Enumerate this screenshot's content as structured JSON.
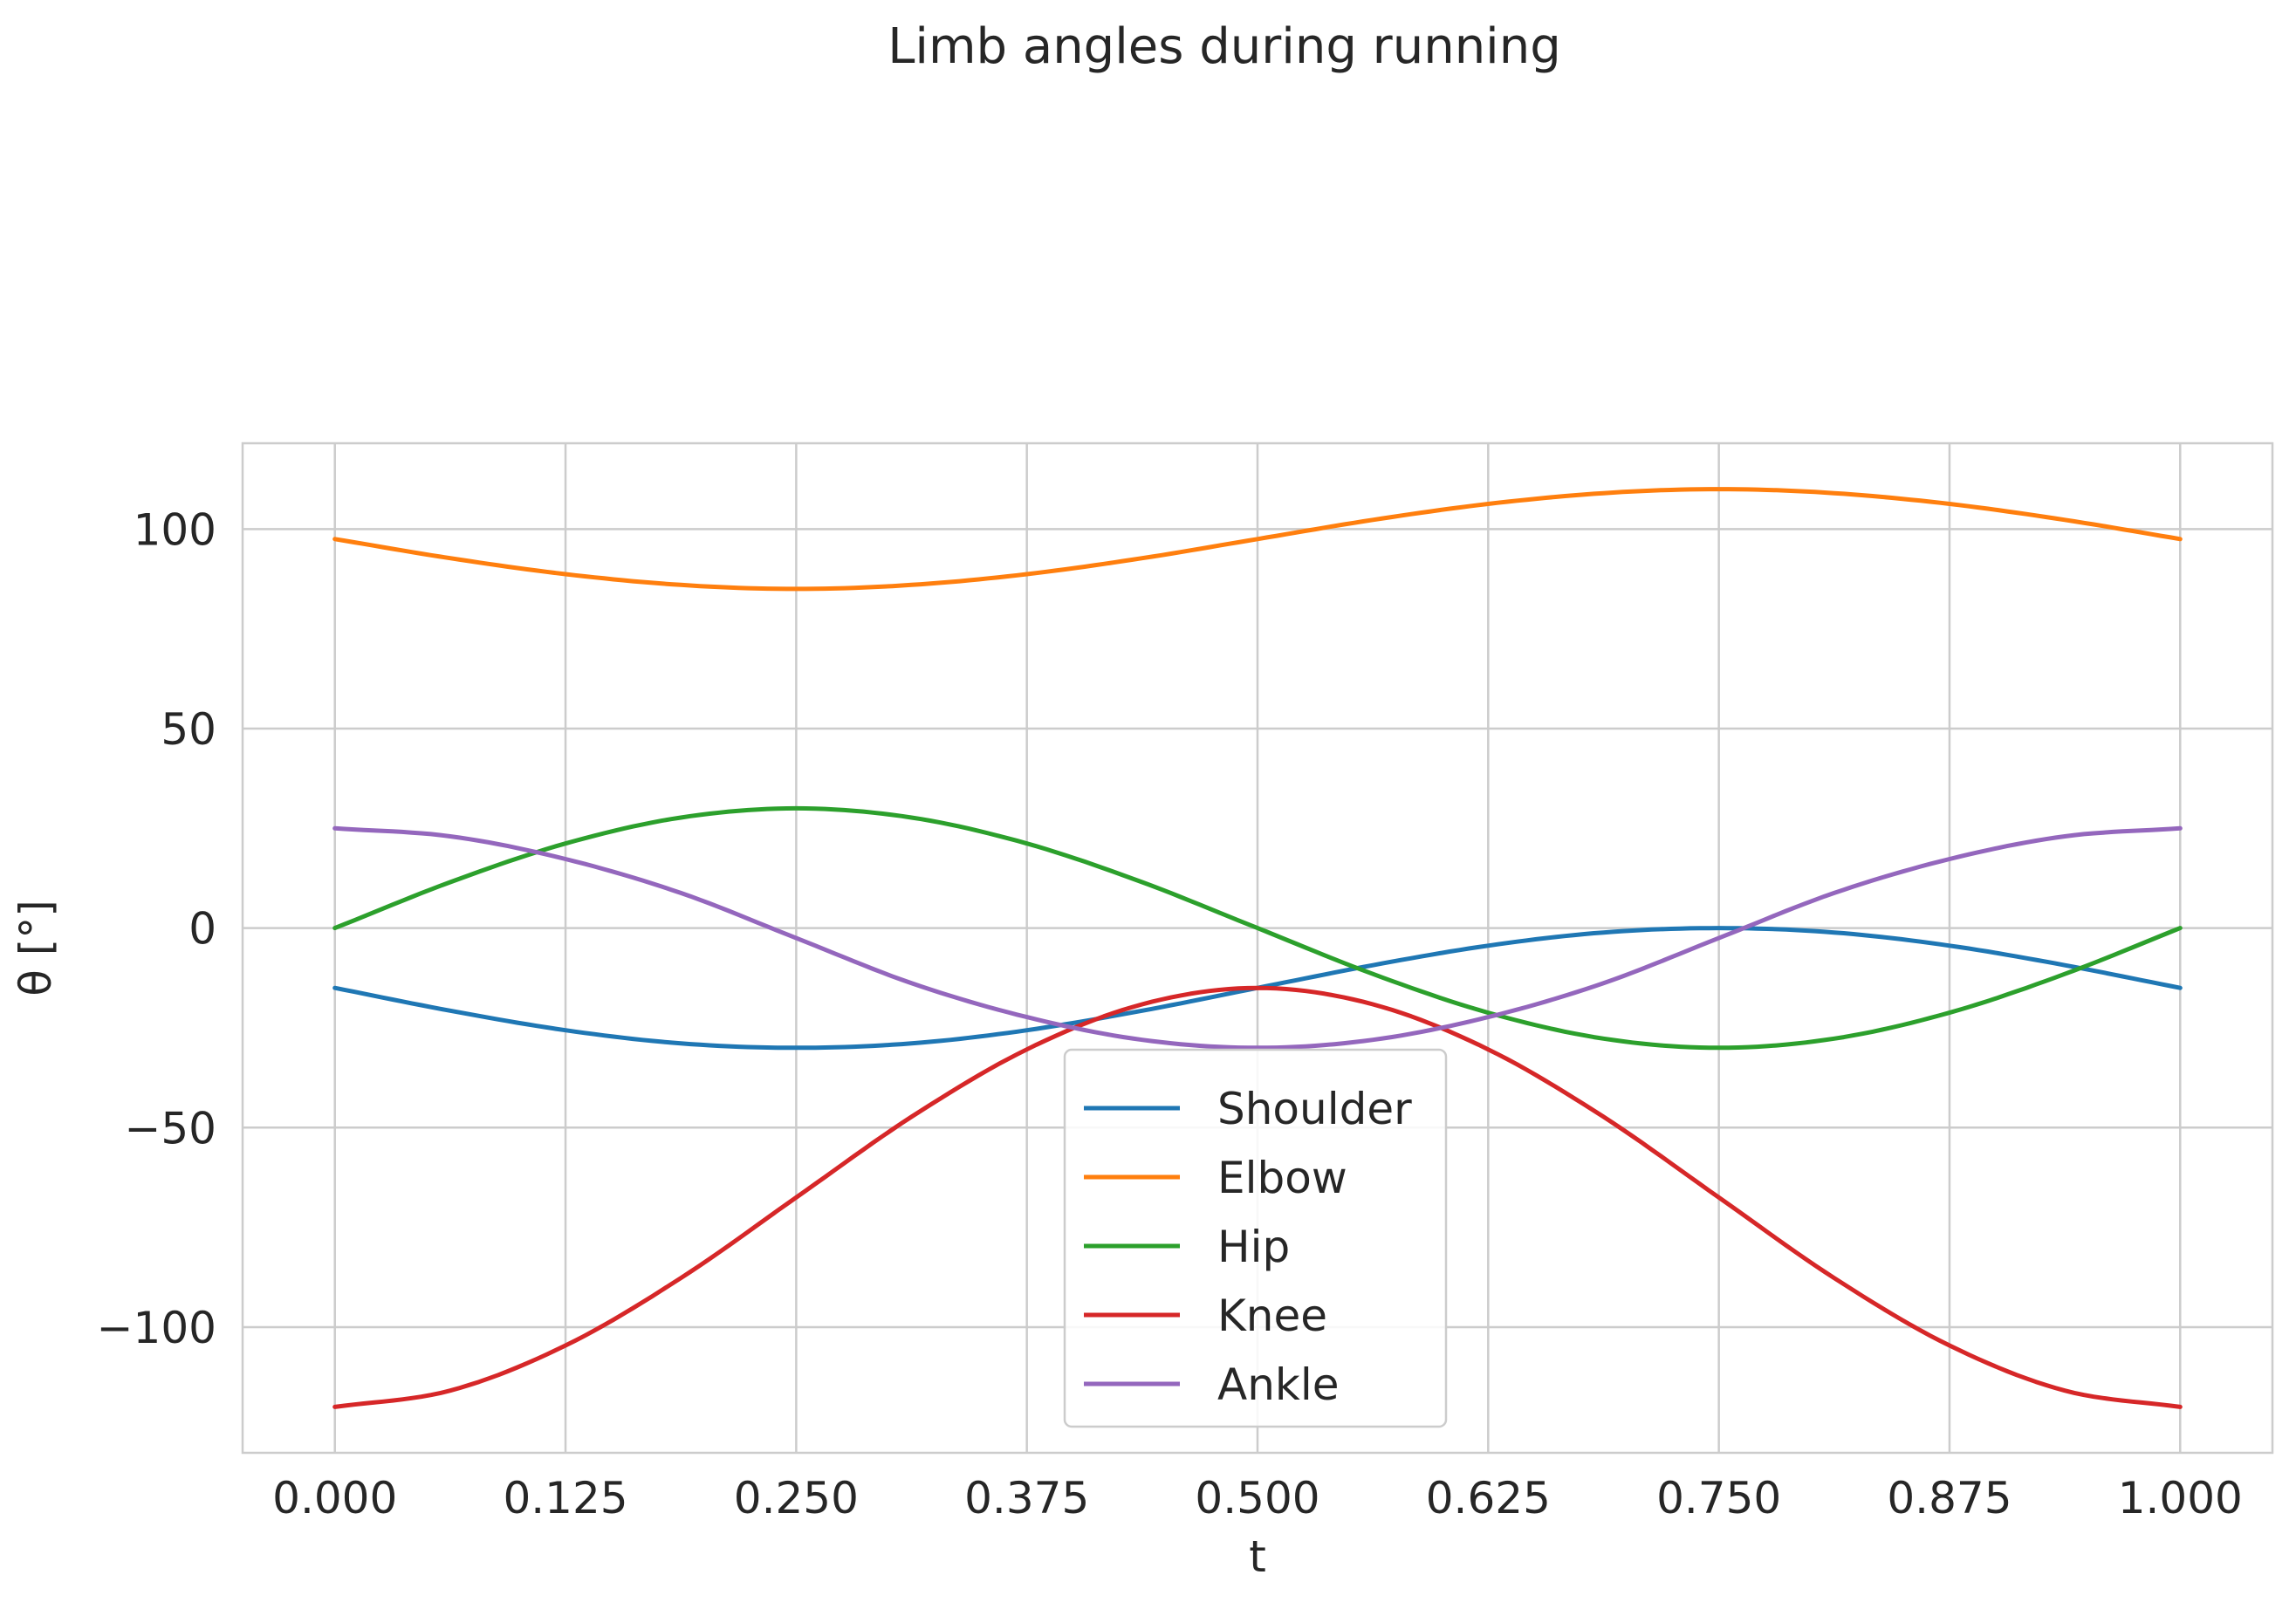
{
  "chart_data": {
    "type": "line",
    "title": "Limb angles during running",
    "xlabel": "t",
    "ylabel": "θ [°]",
    "xlim": [
      -0.05,
      1.05
    ],
    "ylim": [
      -131.5,
      121.5
    ],
    "xticks": [
      0.0,
      0.125,
      0.25,
      0.375,
      0.5,
      0.625,
      0.75,
      0.875,
      1.0
    ],
    "xtick_labels": [
      "0.000",
      "0.125",
      "0.250",
      "0.375",
      "0.500",
      "0.625",
      "0.750",
      "0.875",
      "1.000"
    ],
    "yticks": [
      -100,
      -50,
      0,
      50,
      100
    ],
    "ytick_labels": [
      "−100",
      "−50",
      "0",
      "50",
      "100"
    ],
    "grid": true,
    "legend_position": "bottom-center",
    "x": [
      0.0,
      0.0625,
      0.125,
      0.1875,
      0.25,
      0.3125,
      0.375,
      0.4375,
      0.5,
      0.5625,
      0.625,
      0.6875,
      0.75,
      0.8125,
      0.875,
      0.9375,
      1.0
    ],
    "series": [
      {
        "name": "Shoulder",
        "color": "#1f77b4",
        "values": [
          -15.0,
          -20.7,
          -25.6,
          -28.9,
          -30.0,
          -28.9,
          -25.6,
          -20.7,
          -15.0,
          -9.3,
          -4.4,
          -1.1,
          0.0,
          -1.1,
          -4.4,
          -9.3,
          -15.0
        ]
      },
      {
        "name": "Elbow",
        "color": "#ff7f0e",
        "values": [
          97.5,
          92.7,
          88.7,
          86.0,
          85.0,
          86.0,
          88.7,
          92.7,
          97.5,
          102.3,
          106.3,
          109.0,
          110.0,
          109.0,
          106.3,
          102.3,
          97.5
        ]
      },
      {
        "name": "Hip",
        "color": "#2ca02c",
        "values": [
          0.0,
          11.5,
          21.2,
          27.7,
          30.0,
          27.7,
          21.2,
          11.5,
          0.0,
          -11.5,
          -21.2,
          -27.7,
          -30.0,
          -27.7,
          -21.2,
          -11.5,
          0.0
        ]
      },
      {
        "name": "Knee",
        "color": "#d62728",
        "values": [
          -120.0,
          -115.9,
          -104.6,
          -87.7,
          -67.5,
          -47.3,
          -30.4,
          -19.1,
          -15.0,
          -19.1,
          -30.4,
          -47.3,
          -67.5,
          -87.7,
          -104.6,
          -115.9,
          -120.0
        ]
      },
      {
        "name": "Ankle",
        "color": "#9467bd",
        "values": [
          25.0,
          23.0,
          17.3,
          8.8,
          -2.5,
          -13.8,
          -22.3,
          -28.0,
          -30.0,
          -28.0,
          -22.3,
          -13.8,
          -2.5,
          8.8,
          17.3,
          23.0,
          25.0
        ]
      }
    ]
  }
}
